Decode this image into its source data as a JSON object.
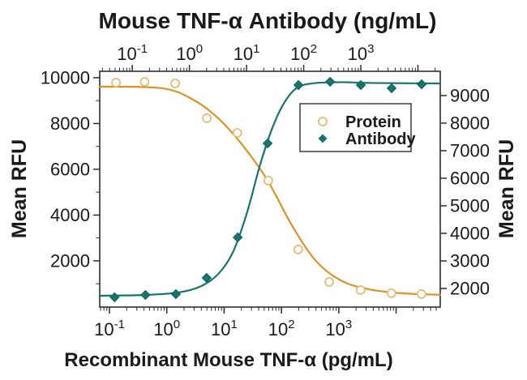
{
  "chart_data": {
    "type": "scatter",
    "title_top": "Mouse TNF-α Antibody (ng/mL)",
    "title_bottom": "Recombinant Mouse TNF-α (pg/mL)",
    "ylabel_left": "Mean RFU",
    "ylabel_right": "Mean RFU",
    "background": "#ffffff",
    "frame_color": "#2e2e2e",
    "grid": false,
    "axes": {
      "bottom": {
        "scale": "log",
        "unit": "pg/mL",
        "base": "10",
        "log_min": -1.17,
        "log_max": 4.77,
        "labeled_decades": [
          -1,
          0,
          1,
          2,
          3
        ],
        "decade_start": -2,
        "decade_end": 4,
        "minor_mantissas": [
          2,
          3,
          4,
          5,
          6,
          7,
          8,
          9
        ]
      },
      "top": {
        "scale": "log",
        "unit": "ng/mL",
        "base": "10",
        "log_min": -1.57,
        "log_max": 4.39,
        "labeled_decades": [
          -1,
          0,
          1,
          2,
          3
        ],
        "decade_start": -2,
        "decade_end": 4,
        "minor_mantissas": [
          2,
          3,
          4,
          5,
          6,
          7,
          8,
          9
        ]
      },
      "left": {
        "min": -20,
        "max": 10280,
        "major_ticks": [
          2000,
          4000,
          6000,
          8000,
          10000
        ],
        "minor_ticks": [
          1000,
          3000,
          5000,
          7000,
          9000
        ]
      },
      "right": {
        "min": 1325,
        "max": 9880,
        "major_ticks": [
          2000,
          3000,
          4000,
          5000,
          6000,
          7000,
          8000,
          9000
        ],
        "minor_ticks": []
      }
    },
    "series": [
      {
        "name": "Protein",
        "x_axis": "bottom",
        "y_axis": "left",
        "x_unit": "pg/mL",
        "marker": "open-circle",
        "marker_color": "#e3bd74",
        "line_color": "#dd9226",
        "x": [
          0.13,
          0.41,
          1.4,
          5.0,
          17,
          59,
          196,
          680,
          2400,
          8300,
          27700
        ],
        "y": [
          9790,
          9825,
          9750,
          8230,
          7590,
          5505,
          2495,
          1080,
          725,
          585,
          550
        ],
        "fit_curve": [
          [
            -1.17,
            9610
          ],
          [
            -0.08,
            9540
          ],
          [
            0.48,
            9010
          ],
          [
            0.91,
            8195
          ],
          [
            1.33,
            7025
          ],
          [
            1.76,
            5505
          ],
          [
            2.18,
            3560
          ],
          [
            2.6,
            2000
          ],
          [
            3.03,
            1150
          ],
          [
            3.52,
            760
          ],
          [
            4.09,
            585
          ],
          [
            4.77,
            515
          ]
        ]
      },
      {
        "name": "Antibody",
        "x_axis": "top",
        "y_axis": "right",
        "x_unit": "ng/mL",
        "marker": "filled-diamond",
        "marker_color": "#17756e",
        "line_color": "#17756e",
        "x": [
          0.049,
          0.17,
          0.58,
          2.0,
          7.0,
          23.4,
          81,
          290,
          1000,
          3460,
          11600
        ],
        "y": [
          1680,
          1765,
          1795,
          2385,
          3855,
          7265,
          9380,
          9500,
          9380,
          9265,
          9410
        ],
        "fit_curve": [
          [
            -1.57,
            1735
          ],
          [
            -0.76,
            1765
          ],
          [
            -0.19,
            1855
          ],
          [
            0.21,
            2090
          ],
          [
            0.52,
            2560
          ],
          [
            0.77,
            3355
          ],
          [
            1.01,
            4765
          ],
          [
            1.23,
            6440
          ],
          [
            1.44,
            7765
          ],
          [
            1.65,
            8705
          ],
          [
            1.87,
            9265
          ],
          [
            2.15,
            9440
          ],
          [
            2.65,
            9485
          ],
          [
            3.21,
            9455
          ],
          [
            4.39,
            9440
          ]
        ]
      }
    ],
    "legend": {
      "border_color": "#3c3c3c",
      "items": [
        {
          "label": "Protein",
          "marker": "open-circle"
        },
        {
          "label": "Antibody",
          "marker": "filled-diamond"
        }
      ]
    }
  }
}
